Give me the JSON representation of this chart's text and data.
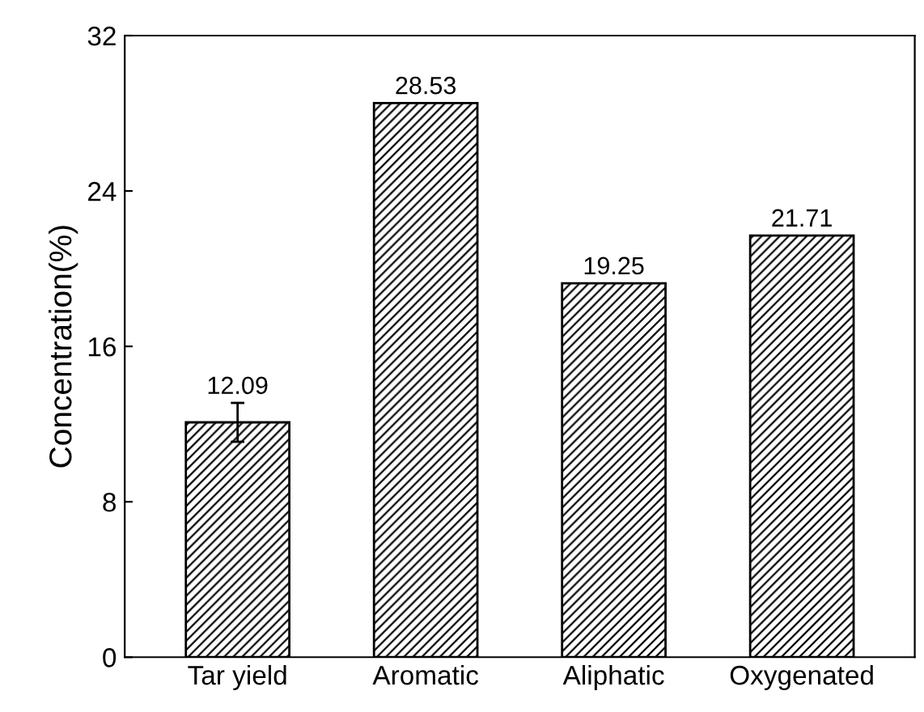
{
  "chart_data": {
    "type": "bar",
    "ylabel": "Concentration(%)",
    "categories": [
      "Tar yield",
      "Aromatic",
      "Aliphatic",
      "Oxygenated"
    ],
    "values": [
      12.09,
      28.53,
      19.25,
      21.71
    ],
    "errors": [
      1.0,
      null,
      null,
      null
    ],
    "color": "#000000",
    "ylim": [
      0,
      32
    ],
    "yticks": [
      0,
      8,
      16,
      24,
      32
    ],
    "data_labels": true,
    "grid": false,
    "legend": false
  }
}
